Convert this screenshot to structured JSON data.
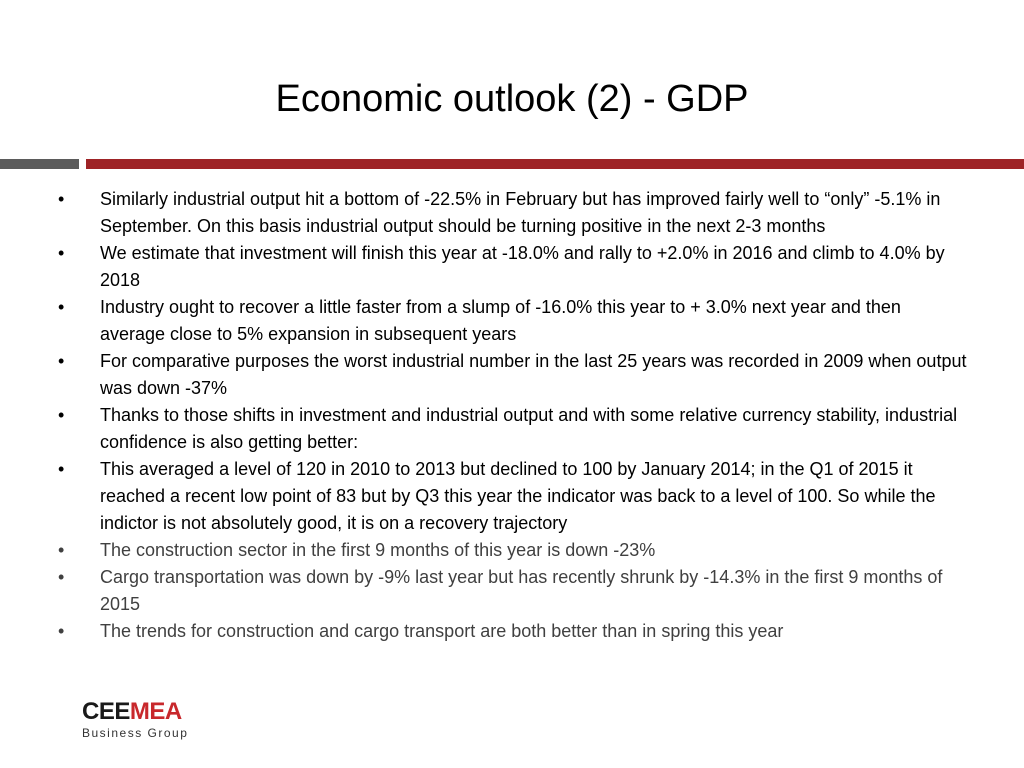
{
  "title": "Economic outlook (2) - GDP",
  "bullets": [
    {
      "text": "Similarly industrial output hit a bottom of -22.5% in February but has improved fairly well to “only” -5.1% in September. On this basis industrial output should be turning positive in the next 2-3 months",
      "muted": false
    },
    {
      "text": "We estimate that investment will finish this year at -18.0% and rally to +2.0% in 2016 and climb to 4.0% by 2018",
      "muted": false
    },
    {
      "text": "Industry ought to recover a little faster from a slump of -16.0% this year to + 3.0% next year and then average close to 5% expansion in subsequent years",
      "muted": false
    },
    {
      "text": "For comparative  purposes the worst industrial number in the last 25 years was recorded in 2009 when output was down -37%",
      "muted": false
    },
    {
      "text": "Thanks to those shifts in investment and industrial output and with some relative currency stability, industrial confidence is also getting better:",
      "muted": false
    },
    {
      "text": "This averaged a level of 120 in 2010 to 2013 but declined to 100 by January 2014; in the Q1 of 2015 it reached a recent low point of 83 but by Q3 this year the indicator was back to a level of 100. So while the indictor is not absolutely good, it is on a recovery trajectory",
      "muted": false
    },
    {
      "text": "The construction sector in the first 9 months of this year is down -23%",
      "muted": true
    },
    {
      "text": "Cargo transportation was down by -9% last year but has recently shrunk by -14.3% in the first 9 months of 2015",
      "muted": true
    },
    {
      "text": "The trends for construction and cargo transport are both better than in spring this year",
      "muted": true
    }
  ],
  "bullet_glyph": "•",
  "logo": {
    "main_dark": "CEE",
    "main_accent": "MEA",
    "sub": "Business Group"
  },
  "colors": {
    "rule_grey": "#5b5b5b",
    "rule_red": "#9e2326",
    "logo_red": "#c8282c"
  }
}
